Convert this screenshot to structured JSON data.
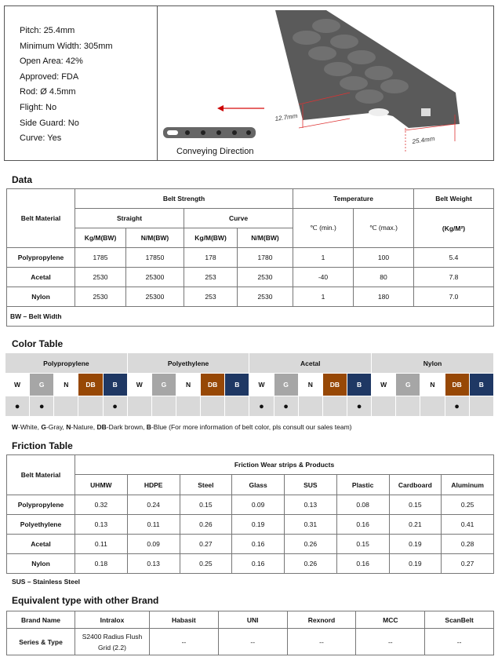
{
  "specs": [
    "Pitch: 25.4mm",
    "Minimum Width: 305mm",
    "Open Area: 42%",
    "Approved: FDA",
    "Rod: Ø 4.5mm",
    "Flight: No",
    "Side Guard: No",
    "Curve: Yes"
  ],
  "image": {
    "dim_height": "12.7mm",
    "dim_pitch": "25.4mm",
    "caption": "Conveying Direction"
  },
  "data": {
    "title": "Data",
    "headers": {
      "material": "Belt Material",
      "strength": "Belt Strength",
      "straight": "Straight",
      "curve": "Curve",
      "temp": "Temperature",
      "weight": "Belt Weight",
      "kg": "Kg/M(BW)",
      "n": "N/M(BW)",
      "tmin": "℃ (min.)",
      "tmax": "℃ (max.)",
      "wunit": "(Kg/M²)"
    },
    "rows": [
      [
        "Polypropylene",
        "1785",
        "17850",
        "178",
        "1780",
        "1",
        "100",
        "5.4"
      ],
      [
        "Acetal",
        "2530",
        "25300",
        "253",
        "2530",
        "-40",
        "80",
        "7.8"
      ],
      [
        "Nylon",
        "2530",
        "25300",
        "253",
        "2530",
        "1",
        "180",
        "7.0"
      ]
    ],
    "footnote": "BW – Belt Width"
  },
  "colors": {
    "title": "Color Table",
    "materials": [
      "Polypropylene",
      "Polyethylene",
      "Acetal",
      "Nylon"
    ],
    "codes": [
      "W",
      "G",
      "N",
      "DB",
      "B"
    ],
    "swatches": {
      "W": "#ffffff",
      "G": "#a6a6a6",
      "N": "#ffffff",
      "DB": "#974806",
      "B": "#1f3864"
    },
    "availability": [
      [
        true,
        true,
        false,
        false,
        true
      ],
      [
        false,
        false,
        false,
        false,
        false
      ],
      [
        true,
        true,
        false,
        false,
        true
      ],
      [
        false,
        false,
        false,
        true,
        false
      ]
    ],
    "dot": "●",
    "legend": [
      [
        "W",
        "-White, "
      ],
      [
        "G",
        "-Gray, "
      ],
      [
        "N",
        "-Nature, "
      ],
      [
        "DB",
        "-Dark brown, "
      ],
      [
        "B",
        "-Blue (For more information of belt color, pls consult our sales team)"
      ]
    ]
  },
  "friction": {
    "title": "Friction Table",
    "material_header": "Belt Material",
    "group_header": "Friction Wear strips & Products",
    "cols": [
      "UHMW",
      "HDPE",
      "Steel",
      "Glass",
      "SUS",
      "Plastic",
      "Cardboard",
      "Aluminum"
    ],
    "rows": [
      [
        "Polypropylene",
        "0.32",
        "0.24",
        "0.15",
        "0.09",
        "0.13",
        "0.08",
        "0.15",
        "0.25"
      ],
      [
        "Polyethylene",
        "0.13",
        "0.11",
        "0.26",
        "0.19",
        "0.31",
        "0.16",
        "0.21",
        "0.41"
      ],
      [
        "Acetal",
        "0.11",
        "0.09",
        "0.27",
        "0.16",
        "0.26",
        "0.15",
        "0.19",
        "0.28"
      ],
      [
        "Nylon",
        "0.18",
        "0.13",
        "0.25",
        "0.16",
        "0.26",
        "0.16",
        "0.19",
        "0.27"
      ]
    ],
    "footnote": "SUS – Stainless Steel"
  },
  "brands": {
    "title": "Equivalent type with other Brand",
    "header": [
      "Brand Name",
      "Intralox",
      "Habasit",
      "UNI",
      "Rexnord",
      "MCC",
      "ScanBelt"
    ],
    "row": [
      "Series & Type",
      "S2400 Radius Flush Grid (2.2)",
      "--",
      "--",
      "--",
      "--",
      "--"
    ]
  }
}
